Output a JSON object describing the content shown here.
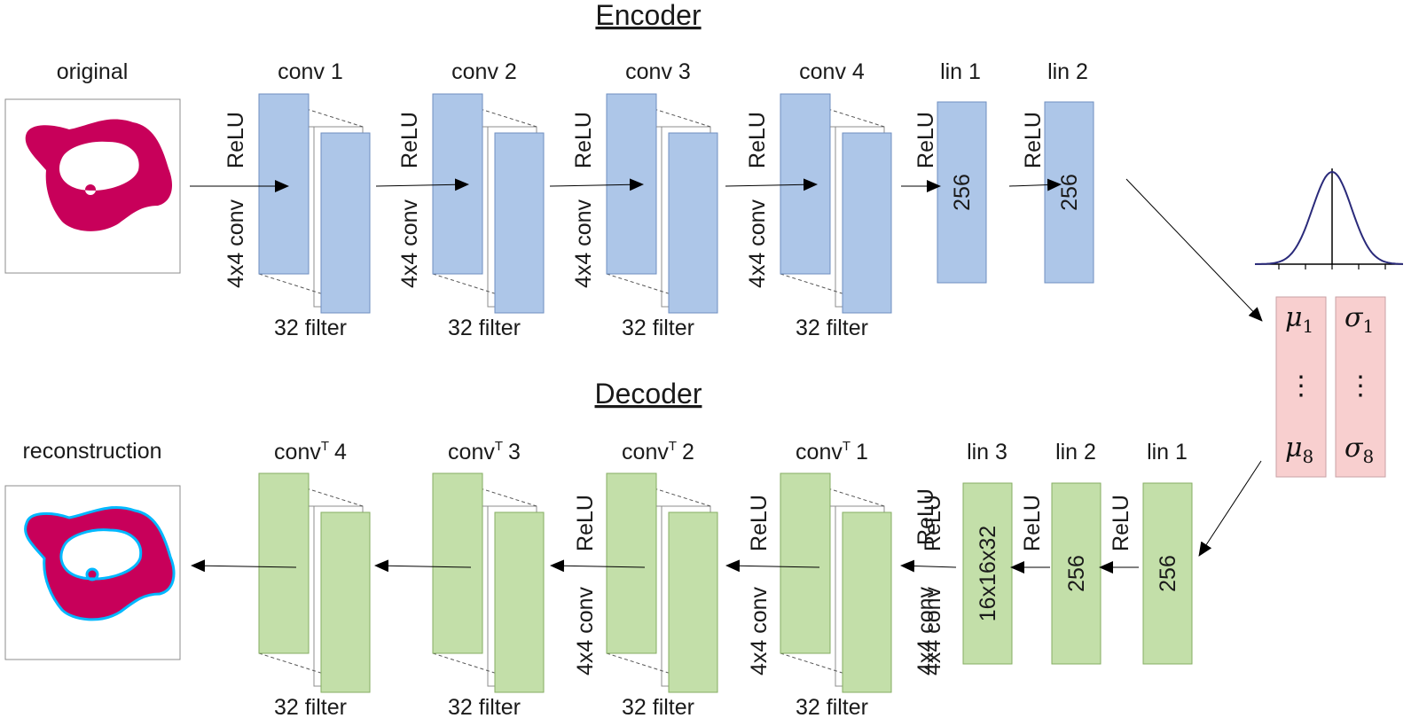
{
  "encoder": {
    "title": "Encoder",
    "input_label": "original",
    "conv_layers": [
      {
        "label": "conv 1",
        "filters": "32 filter",
        "op": "4x4 conv",
        "activation": "ReLU"
      },
      {
        "label": "conv 2",
        "filters": "32 filter",
        "op": "4x4 conv",
        "activation": "ReLU"
      },
      {
        "label": "conv 3",
        "filters": "32 filter",
        "op": "4x4 conv",
        "activation": "ReLU"
      },
      {
        "label": "conv 4",
        "filters": "32 filter",
        "op": "4x4 conv",
        "activation": "ReLU"
      }
    ],
    "linear_layers": [
      {
        "label": "lin 1",
        "size": "256",
        "activation": "ReLU"
      },
      {
        "label": "lin 2",
        "size": "256",
        "activation": "ReLU"
      }
    ]
  },
  "latent": {
    "mu_first": "μ",
    "mu_first_sub": "1",
    "mu_last": "μ",
    "mu_last_sub": "8",
    "sigma_first": "σ",
    "sigma_first_sub": "1",
    "sigma_last": "σ",
    "sigma_last_sub": "8",
    "ellipsis": "⋮"
  },
  "decoder": {
    "title": "Decoder",
    "output_label": "reconstruction",
    "linear_layers": [
      {
        "label": "lin 1",
        "size": "256",
        "activation": "ReLU"
      },
      {
        "label": "lin 2",
        "size": "256",
        "activation": "ReLU"
      },
      {
        "label": "lin 3",
        "size": "16x16x32",
        "activation": "4x4 conv"
      }
    ],
    "convT_layers": [
      {
        "label_base": "conv",
        "label_sup": "T",
        "label_index": "1",
        "filters": "32 filter",
        "op": "4x4 conv",
        "activation": "ReLU"
      },
      {
        "label_base": "conv",
        "label_sup": "T",
        "label_index": "2",
        "filters": "32 filter",
        "op": "4x4 conv",
        "activation": "ReLU"
      },
      {
        "label_base": "conv",
        "label_sup": "T",
        "label_index": "3",
        "filters": "32 filter",
        "op": "4x4 conv",
        "activation": "ReLU"
      },
      {
        "label_base": "conv",
        "label_sup": "T",
        "label_index": "4",
        "filters": "32 filter",
        "op": "",
        "activation": ""
      }
    ],
    "lin3_extra_activation": "ReLU"
  },
  "colors": {
    "encoder_block": "#adc6e8",
    "encoder_edge": "#6f8fc0",
    "decoder_block": "#c3dfa9",
    "decoder_edge": "#86ad62",
    "latent_block": "#f8cfcf",
    "latent_edge": "#c9a2a6",
    "shape_fill": "#c8005a",
    "shape_edge": "#00b8ff"
  }
}
